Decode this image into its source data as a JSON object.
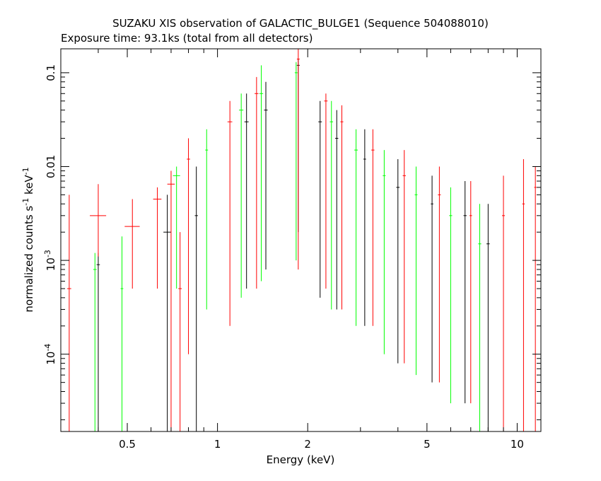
{
  "chart_data": {
    "type": "scatter",
    "title": "SUZAKU XIS observation of GALACTIC_BULGE1 (Sequence 504088010)",
    "subtitle": "Exposure time: 93.1ks (total from all detectors)",
    "xlabel": "Energy (keV)",
    "ylabel_main": "normalized counts s",
    "ylabel_sup1": "-1",
    "ylabel_mid": " keV",
    "ylabel_sup2": "-1",
    "xscale": "log",
    "yscale": "log",
    "xlim": [
      0.3,
      12.0
    ],
    "ylim": [
      1.5e-05,
      0.18
    ],
    "x_ticks": [
      {
        "value": 0.5,
        "label": "0.5"
      },
      {
        "value": 1,
        "label": "1"
      },
      {
        "value": 2,
        "label": "2"
      },
      {
        "value": 5,
        "label": "5"
      },
      {
        "value": 10,
        "label": "10"
      }
    ],
    "y_ticks": [
      {
        "value": 0.1,
        "label": "0.1",
        "sup": ""
      },
      {
        "value": 0.01,
        "label": "0.01",
        "sup": ""
      },
      {
        "value": 0.001,
        "label": "10",
        "sup": "-3"
      },
      {
        "value": 0.0001,
        "label": "10",
        "sup": "-4"
      }
    ],
    "series": [
      {
        "color": "#000000",
        "points": [
          {
            "x": 0.4,
            "y": 0.0009,
            "xlo": 0.395,
            "xhi": 0.405,
            "ylo": 1.5e-05,
            "yhi": 0.0012
          },
          {
            "x": 0.68,
            "y": 0.002,
            "xlo": 0.66,
            "xhi": 0.7,
            "ylo": 1.5e-05,
            "yhi": 0.005
          },
          {
            "x": 0.85,
            "y": 0.003,
            "xlo": 0.84,
            "xhi": 0.86,
            "ylo": 1.5e-05,
            "yhi": 0.01
          },
          {
            "x": 1.25,
            "y": 0.03,
            "xlo": 1.23,
            "xhi": 1.27,
            "ylo": 0.0005,
            "yhi": 0.06
          },
          {
            "x": 1.45,
            "y": 0.04,
            "xlo": 1.43,
            "xhi": 1.47,
            "ylo": 0.0008,
            "yhi": 0.08
          },
          {
            "x": 1.86,
            "y": 0.12,
            "xlo": 1.84,
            "xhi": 1.88,
            "ylo": 0.002,
            "yhi": 0.14
          },
          {
            "x": 2.2,
            "y": 0.03,
            "xlo": 2.17,
            "xhi": 2.23,
            "ylo": 0.0004,
            "yhi": 0.05
          },
          {
            "x": 2.5,
            "y": 0.02,
            "xlo": 2.47,
            "xhi": 2.53,
            "ylo": 0.0003,
            "yhi": 0.04
          },
          {
            "x": 3.1,
            "y": 0.012,
            "xlo": 3.07,
            "xhi": 3.13,
            "ylo": 0.0002,
            "yhi": 0.025
          },
          {
            "x": 4.0,
            "y": 0.006,
            "xlo": 3.95,
            "xhi": 4.05,
            "ylo": 8e-05,
            "yhi": 0.012
          },
          {
            "x": 5.2,
            "y": 0.004,
            "xlo": 5.15,
            "xhi": 5.25,
            "ylo": 5e-05,
            "yhi": 0.008
          },
          {
            "x": 6.7,
            "y": 0.003,
            "xlo": 6.62,
            "xhi": 6.78,
            "ylo": 3e-05,
            "yhi": 0.007
          },
          {
            "x": 8.0,
            "y": 0.0015,
            "xlo": 7.9,
            "xhi": 8.1,
            "ylo": 1.5e-05,
            "yhi": 0.004
          }
        ]
      },
      {
        "color": "#ff0000",
        "points": [
          {
            "x": 0.32,
            "y": 0.0005,
            "xlo": 0.315,
            "xhi": 0.325,
            "ylo": 1.5e-05,
            "yhi": 0.005
          },
          {
            "x": 0.4,
            "y": 0.003,
            "xlo": 0.375,
            "xhi": 0.425,
            "ylo": 0.0011,
            "yhi": 0.0065
          },
          {
            "x": 0.52,
            "y": 0.0023,
            "xlo": 0.49,
            "xhi": 0.55,
            "ylo": 0.0005,
            "yhi": 0.0045
          },
          {
            "x": 0.63,
            "y": 0.0045,
            "xlo": 0.61,
            "xhi": 0.65,
            "ylo": 0.0005,
            "yhi": 0.006
          },
          {
            "x": 0.7,
            "y": 0.0065,
            "xlo": 0.68,
            "xhi": 0.72,
            "ylo": 1.5e-05,
            "yhi": 0.009
          },
          {
            "x": 0.75,
            "y": 0.0005,
            "xlo": 0.74,
            "xhi": 0.76,
            "ylo": 1.5e-05,
            "yhi": 0.002
          },
          {
            "x": 0.8,
            "y": 0.012,
            "xlo": 0.79,
            "xhi": 0.81,
            "ylo": 0.0001,
            "yhi": 0.02
          },
          {
            "x": 1.1,
            "y": 0.03,
            "xlo": 1.08,
            "xhi": 1.12,
            "ylo": 0.0002,
            "yhi": 0.05
          },
          {
            "x": 1.35,
            "y": 0.06,
            "xlo": 1.33,
            "xhi": 1.37,
            "ylo": 0.0005,
            "yhi": 0.09
          },
          {
            "x": 1.86,
            "y": 0.14,
            "xlo": 1.84,
            "xhi": 1.88,
            "ylo": 0.0008,
            "yhi": 0.18
          },
          {
            "x": 2.3,
            "y": 0.05,
            "xlo": 2.27,
            "xhi": 2.33,
            "ylo": 0.0005,
            "yhi": 0.06
          },
          {
            "x": 2.6,
            "y": 0.03,
            "xlo": 2.57,
            "xhi": 2.63,
            "ylo": 0.0003,
            "yhi": 0.045
          },
          {
            "x": 3.3,
            "y": 0.015,
            "xlo": 3.26,
            "xhi": 3.34,
            "ylo": 0.0002,
            "yhi": 0.025
          },
          {
            "x": 4.2,
            "y": 0.008,
            "xlo": 4.15,
            "xhi": 4.25,
            "ylo": 8e-05,
            "yhi": 0.015
          },
          {
            "x": 5.5,
            "y": 0.005,
            "xlo": 5.44,
            "xhi": 5.56,
            "ylo": 5e-05,
            "yhi": 0.01
          },
          {
            "x": 7.0,
            "y": 0.003,
            "xlo": 6.93,
            "xhi": 7.07,
            "ylo": 3e-05,
            "yhi": 0.007
          },
          {
            "x": 9.0,
            "y": 0.003,
            "xlo": 8.9,
            "xhi": 9.1,
            "ylo": 1.5e-05,
            "yhi": 0.008
          },
          {
            "x": 10.5,
            "y": 0.004,
            "xlo": 10.4,
            "xhi": 10.6,
            "ylo": 1.5e-05,
            "yhi": 0.012
          },
          {
            "x": 11.5,
            "y": 0.006,
            "xlo": 11.4,
            "xhi": 11.6,
            "ylo": 1.5e-05,
            "yhi": 0.01
          }
        ]
      },
      {
        "color": "#00ff00",
        "points": [
          {
            "x": 0.39,
            "y": 0.0008,
            "xlo": 0.385,
            "xhi": 0.395,
            "ylo": 1.5e-05,
            "yhi": 0.0012
          },
          {
            "x": 0.48,
            "y": 0.0005,
            "xlo": 0.475,
            "xhi": 0.485,
            "ylo": 1.5e-05,
            "yhi": 0.0018
          },
          {
            "x": 0.73,
            "y": 0.008,
            "xlo": 0.71,
            "xhi": 0.75,
            "ylo": 0.0005,
            "yhi": 0.01
          },
          {
            "x": 0.92,
            "y": 0.015,
            "xlo": 0.91,
            "xhi": 0.93,
            "ylo": 0.0003,
            "yhi": 0.025
          },
          {
            "x": 1.2,
            "y": 0.04,
            "xlo": 1.18,
            "xhi": 1.22,
            "ylo": 0.0004,
            "yhi": 0.06
          },
          {
            "x": 1.4,
            "y": 0.06,
            "xlo": 1.38,
            "xhi": 1.42,
            "ylo": 0.0006,
            "yhi": 0.12
          },
          {
            "x": 1.83,
            "y": 0.1,
            "xlo": 1.81,
            "xhi": 1.85,
            "ylo": 0.001,
            "yhi": 0.13
          },
          {
            "x": 2.4,
            "y": 0.03,
            "xlo": 2.37,
            "xhi": 2.43,
            "ylo": 0.0003,
            "yhi": 0.05
          },
          {
            "x": 2.9,
            "y": 0.015,
            "xlo": 2.86,
            "xhi": 2.94,
            "ylo": 0.0002,
            "yhi": 0.025
          },
          {
            "x": 3.6,
            "y": 0.008,
            "xlo": 3.56,
            "xhi": 3.64,
            "ylo": 0.0001,
            "yhi": 0.015
          },
          {
            "x": 4.6,
            "y": 0.005,
            "xlo": 4.55,
            "xhi": 4.65,
            "ylo": 6e-05,
            "yhi": 0.01
          },
          {
            "x": 6.0,
            "y": 0.003,
            "xlo": 5.93,
            "xhi": 6.07,
            "ylo": 3e-05,
            "yhi": 0.006
          },
          {
            "x": 7.5,
            "y": 0.0015,
            "xlo": 7.41,
            "xhi": 7.59,
            "ylo": 1.5e-05,
            "yhi": 0.004
          }
        ]
      }
    ]
  }
}
